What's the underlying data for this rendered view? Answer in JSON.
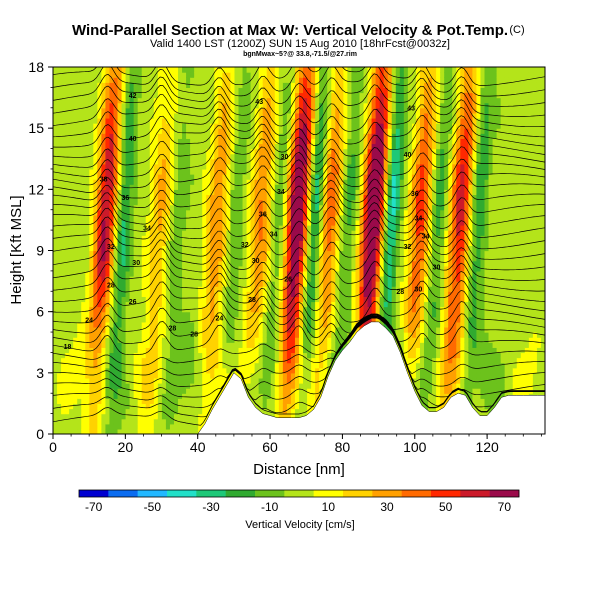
{
  "header": {
    "title": "Wind-Parallel Section at Max W: Vertical Velocity & Pot.Temp.",
    "title_mark": "(C)",
    "subtitle": "Valid 1400 LST (1200Z) SUN 15 Aug 2010 [18hrFcst@0032z]",
    "location": "bgnMwax~5?@ 33.8,-71.5/@27.rim"
  },
  "chart_data": {
    "type": "heatmap",
    "xlabel": "Distance [nm]",
    "ylabel": "Height [Kft MSL]",
    "xlim": [
      0,
      136
    ],
    "ylim": [
      0,
      18
    ],
    "x_ticks": [
      "0",
      "20",
      "40",
      "60",
      "80",
      "100",
      "120"
    ],
    "y_ticks": [
      "0",
      "3",
      "6",
      "9",
      "12",
      "15",
      "18"
    ],
    "colorbar": {
      "label": "Vertical Velocity [cm/s]",
      "tick_labels": [
        "-70",
        "-50",
        "-30",
        "-10",
        "10",
        "30",
        "50",
        "70"
      ],
      "colors": [
        "#0000d0",
        "#0a6cf0",
        "#22b8ff",
        "#22e0c8",
        "#1ec878",
        "#30aa30",
        "#6cc21c",
        "#b4e41a",
        "#ffff00",
        "#ffd200",
        "#ffa000",
        "#ff6a00",
        "#ff2800",
        "#cc1a2a",
        "#9a0a4a"
      ]
    },
    "updraft_columns_nm": [
      14,
      29,
      45,
      57,
      67,
      76,
      88,
      101,
      112
    ],
    "terrain": {
      "x": [
        0,
        8,
        16,
        24,
        32,
        40,
        42,
        44,
        46,
        48,
        50,
        52,
        54,
        56,
        58,
        60,
        62,
        64,
        66,
        68,
        70,
        72,
        74,
        76,
        78,
        80,
        82,
        84,
        86,
        88,
        90,
        92,
        94,
        96,
        98,
        100,
        102,
        104,
        106,
        108,
        110,
        112,
        114,
        116,
        118,
        120,
        122,
        124,
        126,
        128,
        130,
        132,
        134,
        136
      ],
      "height_kft": [
        0,
        0,
        0,
        0,
        0,
        0,
        0.5,
        1.2,
        1.8,
        2.4,
        3.0,
        2.7,
        1.8,
        1.3,
        1.0,
        0.9,
        0.8,
        0.8,
        0.8,
        0.8,
        0.9,
        1.2,
        1.8,
        2.8,
        3.6,
        4.1,
        4.5,
        5.0,
        5.3,
        5.5,
        5.5,
        5.2,
        4.8,
        4.0,
        3.0,
        2.1,
        1.4,
        1.1,
        1.1,
        1.3,
        1.8,
        2.0,
        1.9,
        1.3,
        0.9,
        0.9,
        1.3,
        1.8,
        1.9,
        1.9,
        1.9,
        1.9,
        1.9,
        1.9
      ]
    },
    "contour_labels": [
      {
        "text": "18",
        "x": 4,
        "y": 4.3
      },
      {
        "text": "24",
        "x": 10,
        "y": 5.6
      },
      {
        "text": "26",
        "x": 22,
        "y": 6.5
      },
      {
        "text": "28",
        "x": 16,
        "y": 7.3
      },
      {
        "text": "30",
        "x": 23,
        "y": 8.4
      },
      {
        "text": "32",
        "x": 16,
        "y": 9.2
      },
      {
        "text": "34",
        "x": 26,
        "y": 10.1
      },
      {
        "text": "36",
        "x": 20,
        "y": 11.6
      },
      {
        "text": "38",
        "x": 14,
        "y": 12.5
      },
      {
        "text": "40",
        "x": 22,
        "y": 14.5
      },
      {
        "text": "42",
        "x": 22,
        "y": 16.6
      },
      {
        "text": "28",
        "x": 33,
        "y": 5.2
      },
      {
        "text": "28",
        "x": 39,
        "y": 4.9
      },
      {
        "text": "24",
        "x": 46,
        "y": 5.7
      },
      {
        "text": "28",
        "x": 55,
        "y": 6.6
      },
      {
        "text": "30",
        "x": 56,
        "y": 8.5
      },
      {
        "text": "32",
        "x": 53,
        "y": 9.3
      },
      {
        "text": "36",
        "x": 58,
        "y": 10.8
      },
      {
        "text": "34",
        "x": 61,
        "y": 9.8
      },
      {
        "text": "34",
        "x": 63,
        "y": 11.9
      },
      {
        "text": "30",
        "x": 64,
        "y": 13.6
      },
      {
        "text": "26",
        "x": 65,
        "y": 7.6
      },
      {
        "text": "43",
        "x": 57,
        "y": 16.3
      },
      {
        "text": "40",
        "x": 98,
        "y": 13.7
      },
      {
        "text": "43",
        "x": 99,
        "y": 16
      },
      {
        "text": "36",
        "x": 100,
        "y": 11.8
      },
      {
        "text": "34",
        "x": 101,
        "y": 10.6
      },
      {
        "text": "32",
        "x": 98,
        "y": 9.2
      },
      {
        "text": "30",
        "x": 106,
        "y": 8.2
      },
      {
        "text": "34",
        "x": 103,
        "y": 9.7
      },
      {
        "text": "28",
        "x": 96,
        "y": 7.0
      },
      {
        "text": "30",
        "x": 101,
        "y": 7.1
      }
    ]
  }
}
